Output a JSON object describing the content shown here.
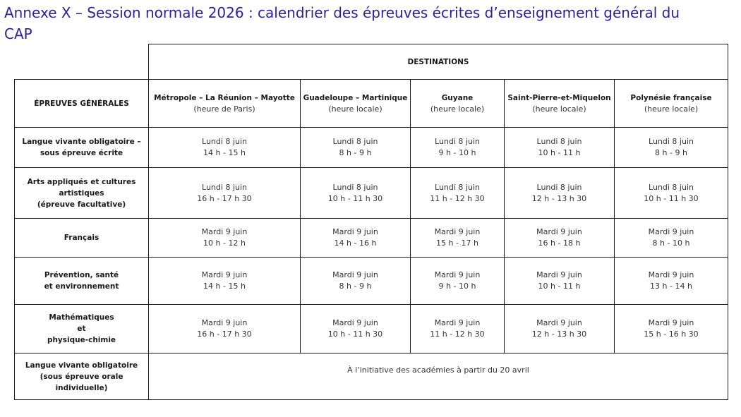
{
  "title": "Annexe X – Session normale 2026 : calendrier des épreuves écrites d’enseignement général du CAP",
  "table": {
    "group_header": "DESTINATIONS",
    "row_header": "ÉPREUVES GÉNÉRALES",
    "columns": [
      {
        "name": "Métropole – La Réunion – Mayotte",
        "note": "(heure de Paris)"
      },
      {
        "name": "Guadeloupe – Martinique",
        "note": "(heure locale)"
      },
      {
        "name": "Guyane",
        "note": "(heure locale)"
      },
      {
        "name": "Saint-Pierre-et-Miquelon",
        "note": "(heure locale)"
      },
      {
        "name": "Polynésie française",
        "note": "(heure locale)"
      }
    ],
    "rows": [
      {
        "label": [
          "Langue vivante obligatoire –",
          "sous épreuve écrite"
        ],
        "cells": [
          [
            "Lundi 8 juin",
            "14 h - 15 h"
          ],
          [
            "Lundi 8 juin",
            "8 h - 9 h"
          ],
          [
            "Lundi 8 juin",
            "9 h - 10 h"
          ],
          [
            "Lundi 8 juin",
            "10 h - 11 h"
          ],
          [
            "Lundi 8 juin",
            "8 h - 9 h"
          ]
        ]
      },
      {
        "label": [
          "Arts appliqués et cultures",
          "artistiques",
          "(épreuve facultative)"
        ],
        "cells": [
          [
            "Lundi 8 juin",
            "16 h - 17 h 30"
          ],
          [
            "Lundi 8 juin",
            "10 h - 11 h 30"
          ],
          [
            "Lundi 8 juin",
            "11 h - 12 h 30"
          ],
          [
            "Lundi 8 juin",
            "12 h - 13 h 30"
          ],
          [
            "Lundi 8 juin",
            "10 h - 11 h 30"
          ]
        ]
      },
      {
        "label": [
          "Français"
        ],
        "cells": [
          [
            "Mardi 9 juin",
            "10 h - 12 h"
          ],
          [
            "Mardi 9 juin",
            "14 h - 16 h"
          ],
          [
            "Mardi 9 juin",
            "15 h - 17 h"
          ],
          [
            "Mardi 9 juin",
            "16 h - 18 h"
          ],
          [
            "Mardi 9 juin",
            "8 h - 10 h"
          ]
        ]
      },
      {
        "label": [
          "Prévention, santé",
          "et environnement"
        ],
        "cells": [
          [
            "Mardi 9 juin",
            "14 h - 15 h"
          ],
          [
            "Mardi 9 juin",
            "8 h - 9 h"
          ],
          [
            "Mardi 9 juin",
            "9 h - 10 h"
          ],
          [
            "Mardi 9 juin",
            "10 h - 11 h"
          ],
          [
            "Mardi 9 juin",
            "13 h - 14 h"
          ]
        ]
      },
      {
        "label": [
          "Mathématiques",
          "et",
          "physique-chimie"
        ],
        "cells": [
          [
            "Mardi 9 juin",
            "16 h - 17 h 30"
          ],
          [
            "Mardi 9 juin",
            "10 h - 11 h 30"
          ],
          [
            "Mardi 9 juin",
            "11 h - 12 h 30"
          ],
          [
            "Mardi 9 juin",
            "12 h - 13 h 30"
          ],
          [
            "Mardi 9 juin",
            "15 h - 16 h 30"
          ]
        ]
      }
    ],
    "last_row": {
      "label": [
        "Langue vivante obligatoire",
        "(sous épreuve orale",
        "individuelle)"
      ],
      "note": "À l’initiative des académies à partir du 20 avril"
    }
  }
}
